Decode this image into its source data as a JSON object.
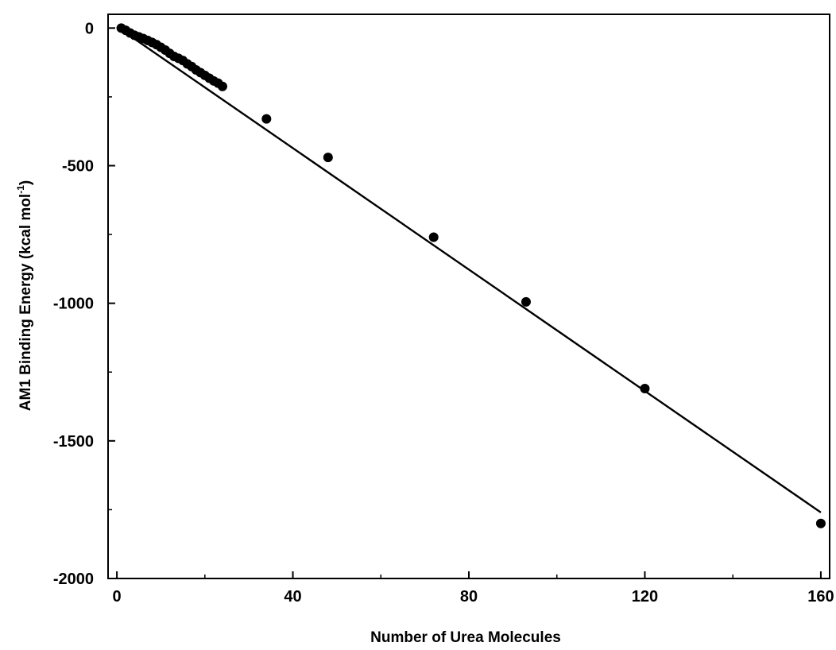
{
  "chart_data": {
    "type": "scatter",
    "xlabel": "Number of Urea Molecules",
    "ylabel_main": "AM1 Binding Energy (kcal mol",
    "ylabel_sup": "-1",
    "ylabel_end": ")",
    "xlim": [
      -2,
      162
    ],
    "ylim": [
      -2000,
      50
    ],
    "xticks": [
      0,
      40,
      80,
      120,
      160
    ],
    "yticks": [
      0,
      -500,
      -1000,
      -1500,
      -2000
    ],
    "xtick_labels": [
      "0",
      "40",
      "80",
      "120",
      "160"
    ],
    "ytick_labels": [
      "0",
      "-500",
      "-1000",
      "-1500",
      "-2000"
    ],
    "grid": false,
    "legend": "none",
    "series": [
      {
        "x": [
          1,
          2,
          3,
          4,
          5,
          6,
          7,
          8,
          9,
          10,
          11,
          12,
          13,
          14,
          15,
          16,
          17,
          18,
          19,
          20,
          21,
          22,
          23,
          24,
          34,
          48,
          72,
          93,
          120,
          160
        ],
        "y": [
          0,
          -8,
          -18,
          -26,
          -32,
          -38,
          -45,
          -52,
          -60,
          -70,
          -80,
          -92,
          -103,
          -110,
          -118,
          -130,
          -140,
          -152,
          -162,
          -172,
          -182,
          -192,
          -200,
          -212,
          -330,
          -470,
          -760,
          -995,
          -1310,
          -1800
        ]
      }
    ],
    "fit_line": {
      "x": [
        0,
        160
      ],
      "y": [
        5,
        -1760
      ]
    }
  }
}
